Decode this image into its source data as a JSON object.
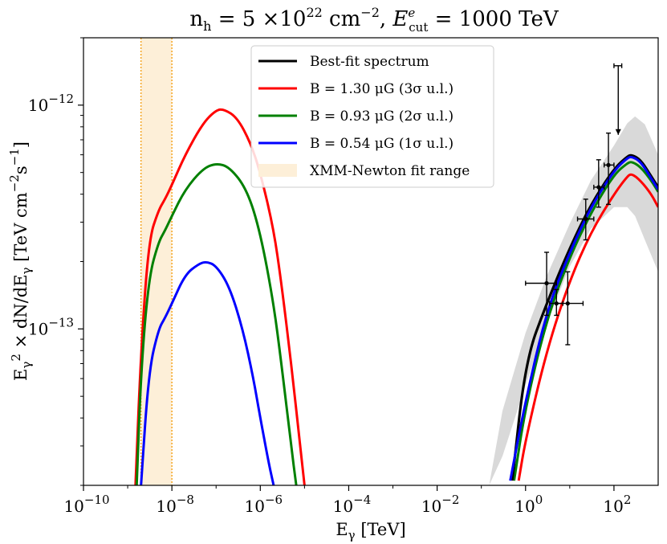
{
  "chart_data": {
    "type": "line",
    "title": "n_h = 5 ×10^22 cm^-2, E_cut^e = 1000 TeV",
    "xlabel": "E_γ [TeV]",
    "ylabel": "E_γ^2 × dN/dE_γ [TeV cm^-2 s^-1]",
    "x_scale": "log",
    "y_scale": "log",
    "xlim": [
      1e-10,
      1000
    ],
    "ylim": [
      2e-14,
      2e-12
    ],
    "x_ticks": [
      {
        "value": 1e-10,
        "label": "10^-10"
      },
      {
        "value": 1e-08,
        "label": "10^-8"
      },
      {
        "value": 1e-06,
        "label": "10^-6"
      },
      {
        "value": 0.0001,
        "label": "10^-4"
      },
      {
        "value": 0.01,
        "label": "10^-2"
      },
      {
        "value": 1,
        "label": "10^0"
      },
      {
        "value": 100,
        "label": "10^2"
      }
    ],
    "y_ticks": [
      {
        "value": 1e-12,
        "label": "10^-12"
      },
      {
        "value": 1e-13,
        "label": "10^-13"
      }
    ],
    "legend_position": "top-center",
    "band": {
      "name": "XMM-Newton fit range",
      "x_range": [
        2e-09,
        1e-08
      ],
      "color": "#FDEFD8",
      "edge_color": "#F5A623"
    },
    "uncertainty_band": {
      "color": "#D9D9D9",
      "x": [
        0.15,
        0.3,
        1,
        3,
        10,
        30,
        100,
        200,
        300,
        500,
        1000
      ],
      "lower": [
        2e-14,
        2.7e-14,
        5.6e-14,
        1.05e-13,
        1.9e-13,
        2.8e-13,
        3.5e-13,
        3.5e-13,
        3.2e-13,
        2.5e-13,
        1.8e-13
      ],
      "upper": [
        2e-14,
        4.3e-14,
        9.6e-14,
        1.72e-13,
        2.95e-13,
        4.6e-13,
        6.6e-13,
        8.3e-13,
        8.9e-13,
        8.2e-13,
        6e-13
      ]
    },
    "series": [
      {
        "name": "Best-fit spectrum",
        "color": "#000000",
        "x": [
          0.5,
          1,
          3,
          10,
          30,
          100,
          200,
          250,
          400,
          700,
          1000
        ],
        "y": [
          2.1e-14,
          7.2e-14,
          1.3e-13,
          2.3e-13,
          3.6e-13,
          5.2e-13,
          5.9e-13,
          6e-13,
          5.7e-13,
          4.8e-13,
          4.3e-13
        ]
      },
      {
        "name": "B = 1.30 μG (3σ u.l.)",
        "color": "#FF0000",
        "x": [
          1.5e-09,
          2e-09,
          3e-09,
          5e-09,
          7e-09,
          1e-08,
          2e-08,
          5e-08,
          1e-07,
          1.5e-07,
          3e-07,
          6e-07,
          1e-06,
          2e-06,
          3e-06,
          5e-06,
          8e-06,
          1e-05,
          0.7,
          1,
          3,
          10,
          30,
          100,
          200,
          250,
          400,
          700,
          1000
        ],
        "y": [
          2e-14,
          8e-14,
          2.5e-13,
          3.4e-13,
          3.8e-13,
          4.4e-13,
          6e-13,
          8.3e-13,
          9.5e-13,
          9.6e-13,
          8.8e-13,
          6.8e-13,
          5e-13,
          2.8e-13,
          1.6e-13,
          7e-14,
          3e-14,
          2e-14,
          2.1e-14,
          3.2e-14,
          8e-14,
          1.65e-13,
          2.7e-13,
          4e-13,
          4.8e-13,
          4.95e-13,
          4.6e-13,
          4e-13,
          3.5e-13
        ]
      },
      {
        "name": "B = 0.93 μG (2σ u.l.)",
        "color": "#008000",
        "x": [
          1.6e-09,
          2e-09,
          3e-09,
          5e-09,
          7e-09,
          1e-08,
          2e-08,
          5e-08,
          1e-07,
          2e-07,
          5e-07,
          1e-06,
          2e-06,
          3e-06,
          5e-06,
          6.5e-06,
          0.55,
          1,
          3,
          10,
          30,
          100,
          200,
          250,
          400,
          700,
          1000
        ],
        "y": [
          2e-14,
          6.5e-14,
          1.7e-13,
          2.45e-13,
          2.75e-13,
          3.2e-13,
          4.2e-13,
          5.2e-13,
          5.5e-13,
          5.3e-13,
          4.2e-13,
          2.7e-13,
          1.3e-13,
          7e-14,
          3e-14,
          2e-14,
          2.1e-14,
          4.5e-14,
          1.1e-13,
          2.1e-13,
          3.3e-13,
          4.9e-13,
          5.5e-13,
          5.6e-13,
          5.3e-13,
          4.6e-13,
          4.1e-13
        ]
      },
      {
        "name": "B = 0.54 μG (1σ u.l.)",
        "color": "#0000FF",
        "x": [
          2e-09,
          3e-09,
          5e-09,
          7e-09,
          1e-08,
          2e-08,
          4e-08,
          6e-08,
          1e-07,
          2e-07,
          4e-07,
          7e-07,
          1e-06,
          1.5e-06,
          2e-06,
          0.45,
          1,
          3,
          10,
          30,
          100,
          200,
          250,
          400,
          700,
          1000
        ],
        "y": [
          2e-14,
          6.5e-14,
          1e-13,
          1.12e-13,
          1.3e-13,
          1.75e-13,
          1.95e-13,
          2e-13,
          1.92e-13,
          1.55e-13,
          1e-13,
          6e-14,
          4e-14,
          2.6e-14,
          2e-14,
          2.1e-14,
          4.8e-14,
          1.2e-13,
          2.2e-13,
          3.5e-13,
          5.1e-13,
          5.8e-13,
          5.9e-13,
          5.6e-13,
          4.7e-13,
          4.2e-13
        ]
      }
    ],
    "data_points": [
      {
        "x": 3,
        "y": 1.6e-13,
        "xerr": [
          1,
          5
        ],
        "yerr": [
          1.15e-13,
          2.2e-13
        ]
      },
      {
        "x": 5,
        "y": 1.3e-13,
        "xerr": [
          3.5,
          7
        ],
        "yerr": [
          1.15e-13,
          1.5e-13
        ]
      },
      {
        "x": 9,
        "y": 1.3e-13,
        "xerr": [
          5,
          20
        ],
        "yerr": [
          8.5e-14,
          1.8e-13
        ]
      },
      {
        "x": 23,
        "y": 3.1e-13,
        "xerr": [
          15,
          35
        ],
        "yerr": [
          2.5e-13,
          3.8e-13
        ]
      },
      {
        "x": 45,
        "y": 4.3e-13,
        "xerr": [
          35,
          60
        ],
        "yerr": [
          3.5e-13,
          5.7e-13
        ]
      },
      {
        "x": 75,
        "y": 5.4e-13,
        "xerr": [
          60,
          100
        ],
        "yerr": [
          3.6e-13,
          7.5e-13
        ]
      },
      {
        "x": 125,
        "y": 1.5e-12,
        "xerr": [
          100,
          150
        ],
        "upper_limit": true
      }
    ]
  }
}
